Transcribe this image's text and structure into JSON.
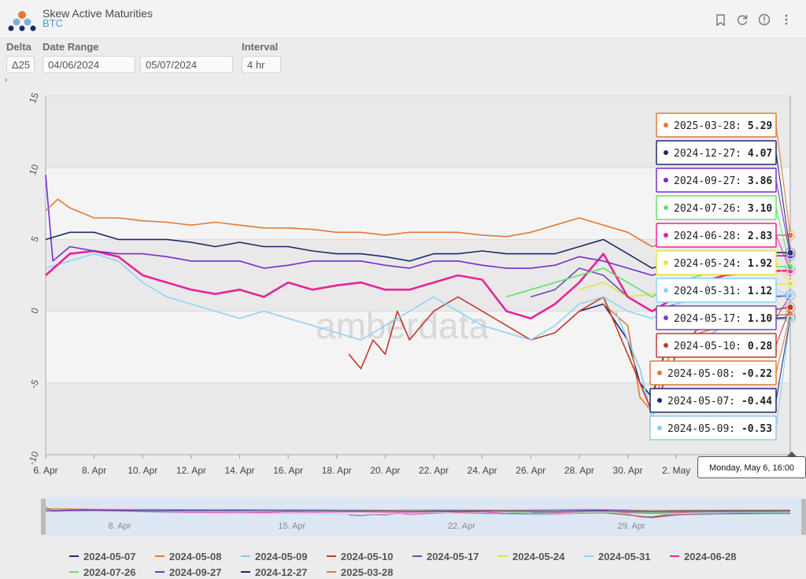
{
  "header": {
    "title": "Skew Active Maturities",
    "subtitle": "BTC"
  },
  "toolbar": {
    "icons": [
      "bookmark-icon",
      "refresh-icon",
      "info-icon",
      "menu-icon"
    ]
  },
  "controls": {
    "delta": {
      "label": "Delta",
      "value": "Δ25"
    },
    "date_range": {
      "label": "Date Range",
      "start": "04/06/2024",
      "end": "05/07/2024"
    },
    "interval": {
      "label": "Interval",
      "value": "4 hr"
    }
  },
  "watermark": "amberdata",
  "tooltip": {
    "date": "Monday, May 6, 16:00",
    "items": [
      {
        "label": "2025-03-28",
        "value": "5.29",
        "color": "#e07a35"
      },
      {
        "label": "2024-12-27",
        "value": "4.07",
        "color": "#1a2c6b"
      },
      {
        "label": "2024-09-27",
        "value": "3.86",
        "color": "#7a2bd0"
      },
      {
        "label": "2024-07-26",
        "value": "3.10",
        "color": "#63e06a"
      },
      {
        "label": "2024-06-28",
        "value": "2.83",
        "color": "#e8239a"
      },
      {
        "label": "2024-05-24",
        "value": "1.92",
        "color": "#e8e04a"
      },
      {
        "label": "2024-05-31",
        "value": "1.12",
        "color": "#8fd3f5"
      },
      {
        "label": "2024-05-17",
        "value": "1.10",
        "color": "#6b4bb8"
      },
      {
        "label": "2024-05-10",
        "value": "0.28",
        "color": "#c0392b"
      },
      {
        "label": "2024-05-08",
        "value": "-0.22",
        "color": "#e07a35"
      },
      {
        "label": "2024-05-07",
        "value": "-0.44",
        "color": "#1a2c6b"
      },
      {
        "label": "2024-05-09",
        "value": "-0.53",
        "color": "#8fc9f0"
      }
    ]
  },
  "chart_data": {
    "type": "line",
    "title": "Skew Active Maturities",
    "subtitle": "BTC",
    "xlabel": "",
    "ylabel": "",
    "ylim": [
      -10,
      15
    ],
    "yticks": [
      15,
      10,
      5,
      0,
      -5,
      -10
    ],
    "xlim": [
      0,
      30.7
    ],
    "xticks": [
      {
        "day": 0,
        "label": "6. Apr"
      },
      {
        "day": 2,
        "label": "8. Apr"
      },
      {
        "day": 4,
        "label": "10. Apr"
      },
      {
        "day": 6,
        "label": "12. Apr"
      },
      {
        "day": 8,
        "label": "14. Apr"
      },
      {
        "day": 10,
        "label": "16. Apr"
      },
      {
        "day": 12,
        "label": "18. Apr"
      },
      {
        "day": 14,
        "label": "20. Apr"
      },
      {
        "day": 16,
        "label": "22. Apr"
      },
      {
        "day": 18,
        "label": "24. Apr"
      },
      {
        "day": 20,
        "label": "26. Apr"
      },
      {
        "day": 22,
        "label": "28. Apr"
      },
      {
        "day": 24,
        "label": "30. Apr"
      },
      {
        "day": 26,
        "label": "2. May"
      }
    ],
    "navigator_labels": [
      {
        "day": 2,
        "label": "8. Apr"
      },
      {
        "day": 9,
        "label": "15. Apr"
      },
      {
        "day": 16,
        "label": "22. Apr"
      },
      {
        "day": 23,
        "label": "29. Apr"
      }
    ],
    "grid": true,
    "legend_position": "bottom",
    "series": [
      {
        "name": "2024-05-07",
        "color": "#1a2c6b",
        "x": [
          22,
          23,
          24,
          24.5,
          25,
          25.5,
          26,
          27,
          28,
          29,
          30,
          30.7
        ],
        "y": [
          0,
          0.5,
          -2,
          -5,
          -6,
          -3,
          -2,
          -2,
          -1,
          -1,
          -0.5,
          -0.44
        ]
      },
      {
        "name": "2024-05-08",
        "color": "#e07a35",
        "x": [
          23,
          24,
          24.5,
          25,
          25.5,
          26,
          27,
          28,
          29,
          30,
          30.7
        ],
        "y": [
          0.5,
          -1,
          -6,
          -7,
          -4,
          -2,
          -1.5,
          -1,
          -0.5,
          -0.3,
          -0.22
        ]
      },
      {
        "name": "2024-05-09",
        "color": "#8fc9f0",
        "x": [
          23.5,
          24,
          24.5,
          25,
          25.5,
          26,
          27,
          28,
          29,
          30,
          30.7
        ],
        "y": [
          0,
          -2,
          -4,
          -7.5,
          -5,
          -3,
          -2,
          -1,
          -0.8,
          -0.6,
          -0.53
        ]
      },
      {
        "name": "2024-05-10",
        "color": "#c0392b",
        "x": [
          12.5,
          13,
          13.5,
          14,
          14.5,
          15,
          15.5,
          16,
          17,
          18,
          19,
          20,
          21,
          22,
          23,
          24,
          25,
          26,
          27,
          28,
          29,
          30,
          30.7
        ],
        "y": [
          -3,
          -4,
          -2,
          -3,
          0,
          -2,
          -1,
          0,
          1,
          0,
          -1,
          -2,
          -1.5,
          0,
          1,
          -3,
          -7,
          -3,
          -1,
          -0.5,
          0,
          0.1,
          0.28
        ]
      },
      {
        "name": "2024-05-17",
        "color": "#6b4bb8",
        "x": [
          20,
          21,
          22,
          23,
          24,
          25,
          26,
          27,
          28,
          29,
          30,
          30.7
        ],
        "y": [
          1,
          1.5,
          3,
          2.5,
          1,
          0,
          0.5,
          1,
          1.2,
          1,
          1,
          1.1
        ]
      },
      {
        "name": "2024-05-24",
        "color": "#e8e04a",
        "x": [
          22,
          23,
          24,
          25,
          26,
          27,
          28,
          29,
          30,
          30.7
        ],
        "y": [
          1.5,
          2,
          1,
          1.2,
          1.5,
          1.8,
          2,
          1.9,
          1.9,
          1.92
        ]
      },
      {
        "name": "2024-05-31",
        "color": "#8fd3f5",
        "x": [
          0,
          1,
          2,
          3,
          4,
          5,
          6,
          7,
          8,
          9,
          10,
          11,
          12,
          13,
          14,
          15,
          16,
          17,
          18,
          19,
          20,
          21,
          22,
          23,
          24,
          25,
          26,
          27,
          28,
          29,
          30,
          30.7
        ],
        "y": [
          3,
          3.5,
          4,
          3.5,
          2,
          1,
          0.5,
          0,
          -0.5,
          0,
          -0.5,
          -1,
          -1.5,
          -2,
          -1,
          0,
          1,
          0,
          -1,
          -1.5,
          -2,
          -1,
          0.5,
          1,
          0,
          -0.5,
          0.5,
          1,
          1.2,
          1.1,
          1.1,
          1.12
        ]
      },
      {
        "name": "2024-06-28",
        "color": "#e8239a",
        "x": [
          0,
          1,
          2,
          3,
          4,
          5,
          6,
          7,
          8,
          9,
          10,
          11,
          12,
          13,
          14,
          15,
          16,
          17,
          18,
          19,
          20,
          21,
          22,
          23,
          24,
          25,
          26,
          27,
          28,
          29,
          30,
          30.7
        ],
        "y": [
          2.5,
          4,
          4.2,
          3.8,
          2.5,
          2,
          1.5,
          1.2,
          1.5,
          1,
          2,
          1.5,
          1.8,
          2,
          1.5,
          1.5,
          2,
          2.5,
          2.2,
          0,
          -0.5,
          0.5,
          2,
          4,
          1,
          0,
          1,
          2,
          2.5,
          2.7,
          2.8,
          2.83
        ]
      },
      {
        "name": "2024-07-26",
        "color": "#63e06a",
        "x": [
          19,
          20,
          21,
          22,
          23,
          24,
          25,
          26,
          27,
          28,
          29,
          30,
          30.7
        ],
        "y": [
          1,
          1.5,
          2,
          2.5,
          3,
          2,
          1,
          2,
          2.5,
          3,
          3.1,
          3.1,
          3.1
        ]
      },
      {
        "name": "2024-09-27",
        "color": "#7a2bd0",
        "x": [
          0,
          0.3,
          1,
          2,
          3,
          4,
          5,
          6,
          7,
          8,
          9,
          10,
          11,
          12,
          13,
          14,
          15,
          16,
          17,
          18,
          19,
          20,
          21,
          22,
          23,
          24,
          25,
          26,
          27,
          28,
          29,
          30,
          30.7
        ],
        "y": [
          9.5,
          3.5,
          4.5,
          4.2,
          4,
          4,
          3.8,
          3.5,
          3.5,
          3.5,
          3,
          3.2,
          3.5,
          3.5,
          3.5,
          3.2,
          3,
          3.5,
          3.5,
          3.2,
          3,
          3,
          3.2,
          3.8,
          3.5,
          3,
          2.5,
          3,
          3.5,
          3.8,
          3.9,
          3.86,
          3.86
        ]
      },
      {
        "name": "2024-12-27",
        "color": "#1a2c6b",
        "x": [
          0,
          1,
          2,
          3,
          4,
          5,
          6,
          7,
          8,
          9,
          10,
          11,
          12,
          13,
          14,
          15,
          16,
          17,
          18,
          19,
          20,
          21,
          22,
          23,
          24,
          25,
          26,
          27,
          28,
          29,
          30,
          30.7
        ],
        "y": [
          5,
          5.5,
          5.5,
          5,
          5,
          5,
          4.8,
          4.5,
          4.8,
          4.5,
          4.5,
          4.2,
          4,
          4,
          3.8,
          3.5,
          4,
          4,
          4.2,
          4,
          4,
          4,
          4.5,
          5,
          4,
          3,
          3.5,
          3.8,
          4,
          4,
          4.1,
          4.07
        ]
      },
      {
        "name": "2025-03-28",
        "color": "#e07a35",
        "x": [
          0,
          0.5,
          1,
          2,
          3,
          4,
          5,
          6,
          7,
          8,
          9,
          10,
          11,
          12,
          13,
          14,
          15,
          16,
          17,
          18,
          19,
          20,
          21,
          22,
          23,
          24,
          25,
          26,
          27,
          28,
          29,
          30,
          30.7
        ],
        "y": [
          7,
          7.8,
          7.2,
          6.5,
          6.5,
          6.3,
          6.2,
          6,
          6.2,
          6,
          5.8,
          5.8,
          5.7,
          5.5,
          5.5,
          5.3,
          5.5,
          5.5,
          5.5,
          5.3,
          5.2,
          5.5,
          6,
          6.5,
          6,
          5.5,
          4.5,
          5,
          5.2,
          5.3,
          5.3,
          5.29,
          5.29
        ]
      }
    ]
  }
}
